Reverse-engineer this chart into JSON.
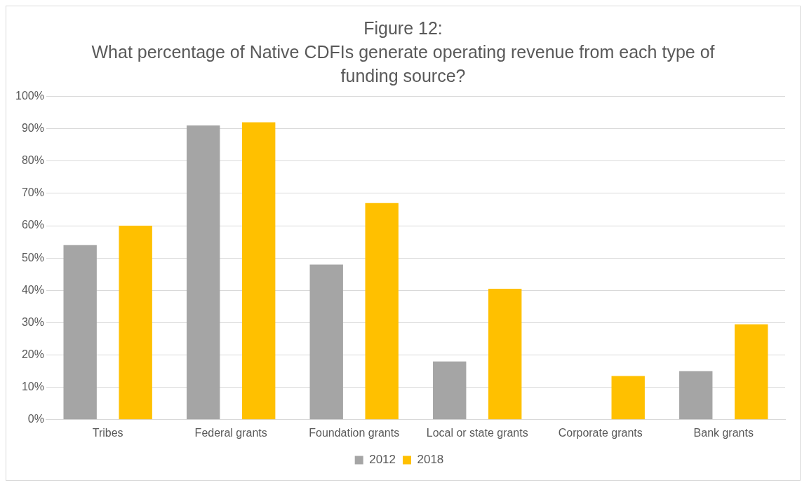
{
  "chart_data": {
    "type": "bar",
    "title": "Figure 12:",
    "subtitle": "What percentage of Native CDFIs generate operating revenue from each type of funding source?",
    "categories": [
      "Tribes",
      "Federal grants",
      "Foundation grants",
      "Local or state grants",
      "Corporate grants",
      "Bank grants"
    ],
    "series": [
      {
        "name": "2012",
        "color": "#a5a5a5",
        "values": [
          54,
          91,
          48,
          18,
          0,
          15
        ]
      },
      {
        "name": "2018",
        "color": "#ffc000",
        "values": [
          60,
          92,
          67,
          40.5,
          13.5,
          29.5
        ]
      }
    ],
    "ylim": [
      0,
      100
    ],
    "yticks": [
      {
        "value": 0,
        "label": "0%"
      },
      {
        "value": 10,
        "label": "10%"
      },
      {
        "value": 20,
        "label": "20%"
      },
      {
        "value": 30,
        "label": "30%"
      },
      {
        "value": 40,
        "label": "40%"
      },
      {
        "value": 50,
        "label": "50%"
      },
      {
        "value": 60,
        "label": "60%"
      },
      {
        "value": 70,
        "label": "70%"
      },
      {
        "value": 80,
        "label": "80%"
      },
      {
        "value": 90,
        "label": "90%"
      },
      {
        "value": 100,
        "label": "100%"
      }
    ],
    "grid": "y",
    "legend": "bottom"
  }
}
